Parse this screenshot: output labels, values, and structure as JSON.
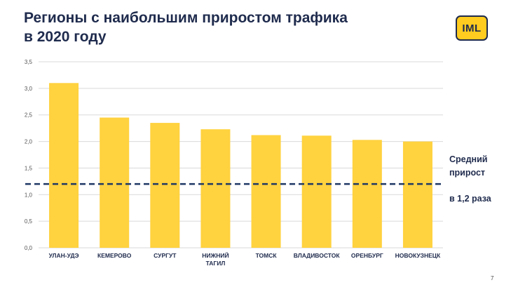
{
  "slide": {
    "title_line1": "Регионы с наибольшим приростом трафика",
    "title_line2": "в 2020 году",
    "logo_text": "IML",
    "average_label_line1": "Средний",
    "average_label_line2": "прирост",
    "average_label_line3": "в 1,2 раза",
    "page_number": "7"
  },
  "colors": {
    "bar": "#ffd23f",
    "average_line": "#1f3864",
    "text": "#1f2b4d",
    "grid": "#d9d9d9"
  },
  "chart_data": {
    "type": "bar",
    "categories": [
      "УЛАН-УДЭ",
      "КЕМЕРОВО",
      "СУРГУТ",
      "НИЖНИЙ ТАГИЛ",
      "ТОМСК",
      "ВЛАДИВОСТОК",
      "ОРЕНБУРГ",
      "НОВОКУЗНЕЦК"
    ],
    "category_lines": [
      [
        "УЛАН-УДЭ"
      ],
      [
        "КЕМЕРОВО"
      ],
      [
        "СУРГУТ"
      ],
      [
        "НИЖНИЙ",
        "ТАГИЛ"
      ],
      [
        "ТОМСК"
      ],
      [
        "ВЛАДИВОСТОК"
      ],
      [
        "ОРЕНБУРГ"
      ],
      [
        "НОВОКУЗНЕЦК"
      ]
    ],
    "values": [
      3.1,
      2.45,
      2.35,
      2.23,
      2.12,
      2.11,
      2.03,
      2.0
    ],
    "average": 1.2,
    "ylim": [
      0,
      3.5
    ],
    "yticks": [
      "0,0",
      "0,5",
      "1,0",
      "1,5",
      "2,0",
      "2,5",
      "3,0",
      "3,5"
    ],
    "ytick_values": [
      0,
      0.5,
      1.0,
      1.5,
      2.0,
      2.5,
      3.0,
      3.5
    ],
    "grid": true,
    "title": "",
    "xlabel": "",
    "ylabel": ""
  }
}
